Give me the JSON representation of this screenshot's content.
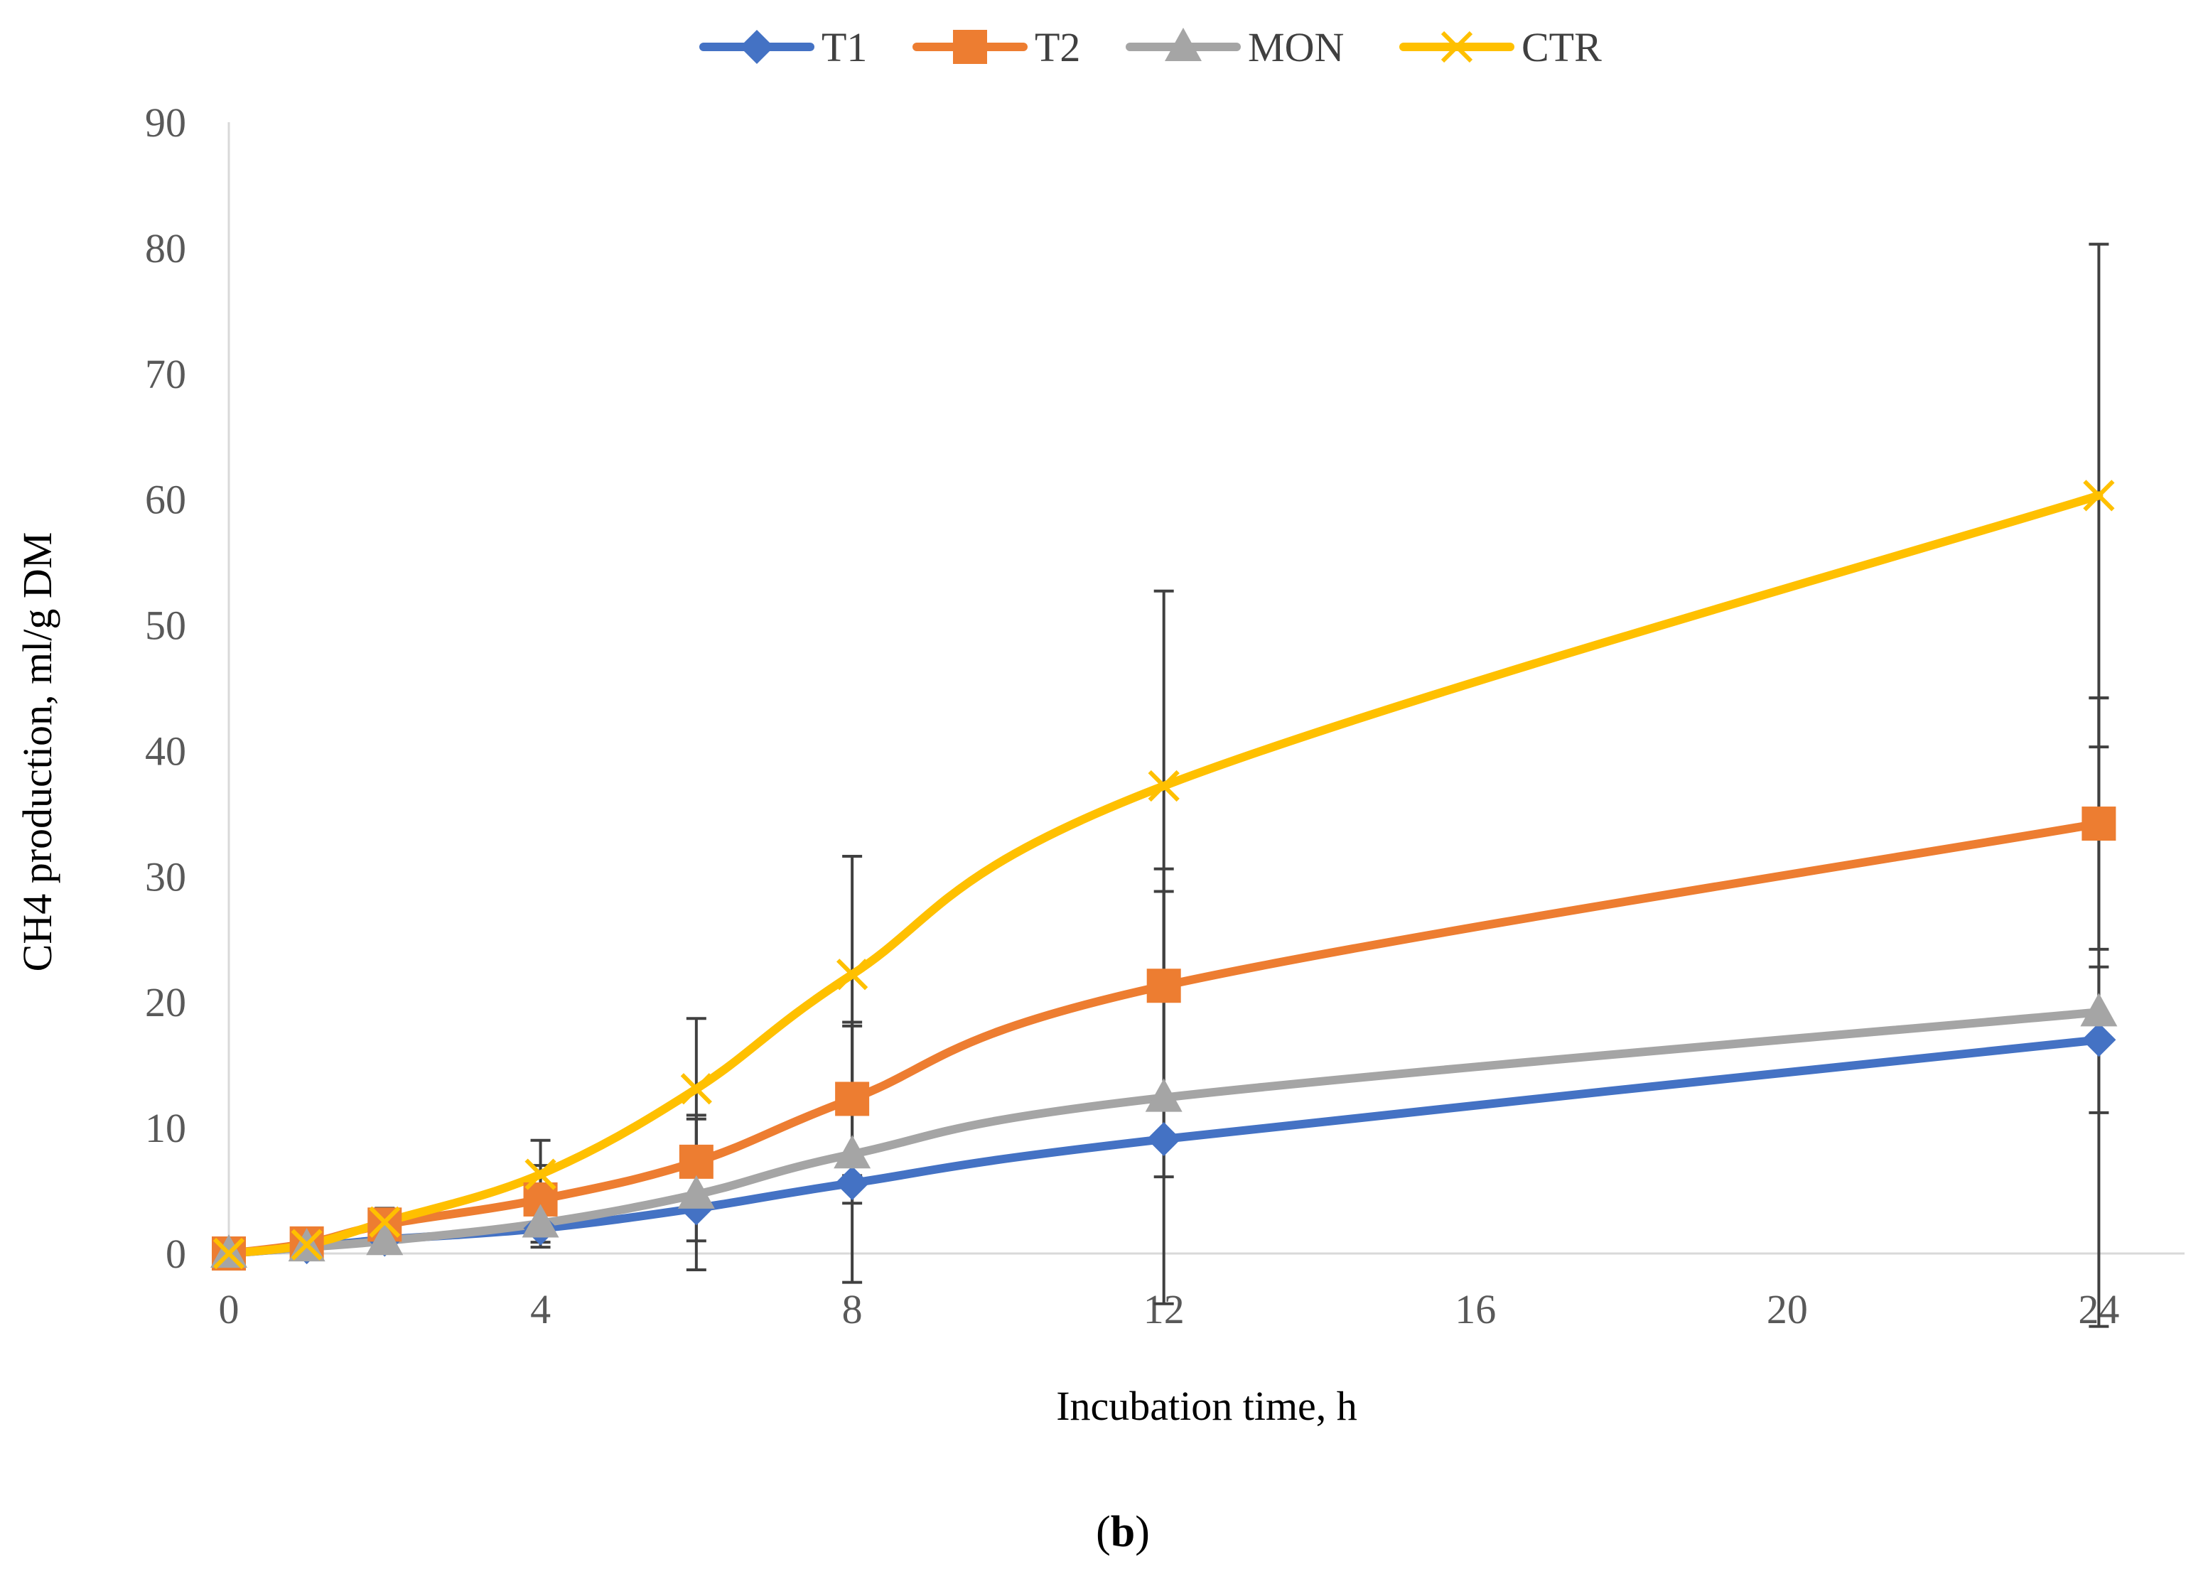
{
  "caption": {
    "open": "(",
    "letter": "b",
    "close": ")"
  },
  "chart_data": {
    "type": "line",
    "title": "",
    "xlabel": "Incubation time, h",
    "ylabel": "CH4 production, ml/g DM",
    "xlim": [
      0,
      25.1
    ],
    "ylim": [
      0,
      90
    ],
    "xticks": [
      0,
      4,
      8,
      12,
      16,
      20,
      24
    ],
    "yticks": [
      0,
      10,
      20,
      30,
      40,
      50,
      60,
      70,
      80,
      90
    ],
    "grid": false,
    "legend": "top-center",
    "x": [
      0,
      1,
      2,
      4,
      6,
      8,
      12,
      24
    ],
    "series": [
      {
        "name": "T1",
        "color": "#4472C4",
        "marker": "diamond",
        "values": [
          0,
          0.5,
          1.1,
          2.0,
          3.6,
          5.6,
          9.1,
          17.0
        ],
        "errors": [
          0,
          0.2,
          0.4,
          1.5,
          2.6,
          1.6,
          3.0,
          5.8
        ]
      },
      {
        "name": "T2",
        "color": "#ED7D31",
        "marker": "square",
        "values": [
          0,
          0.8,
          2.3,
          4.3,
          7.3,
          12.3,
          21.3,
          34.2
        ],
        "errors": [
          0,
          0.4,
          1.2,
          2.7,
          3.7,
          6.1,
          9.3,
          10.0
        ]
      },
      {
        "name": "MON",
        "color": "#A5A5A5",
        "marker": "triangle",
        "values": [
          0,
          0.5,
          1.0,
          2.4,
          4.7,
          7.9,
          12.4,
          19.2
        ],
        "errors": [
          0,
          0.3,
          0.6,
          1.5,
          6.0,
          10.2,
          16.4,
          25.0
        ]
      },
      {
        "name": "CTR",
        "color": "#FFC000",
        "marker": "x",
        "values": [
          0,
          0.7,
          2.5,
          6.3,
          13.1,
          22.2,
          37.2,
          60.3
        ],
        "errors": [
          0,
          0.4,
          1.1,
          2.7,
          5.6,
          9.4,
          15.5,
          20.0
        ]
      }
    ]
  }
}
